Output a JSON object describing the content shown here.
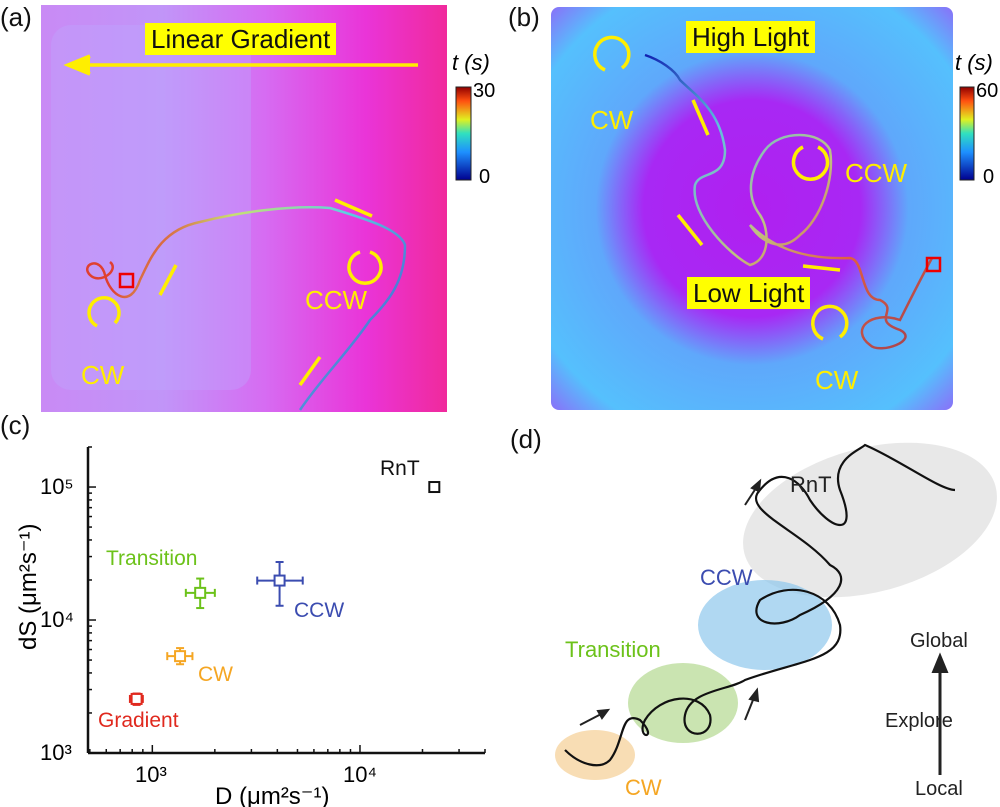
{
  "panel_a": {
    "label": "(a)",
    "title_box": "Linear Gradient",
    "rotation_labels": [
      "CW",
      "CCW"
    ],
    "colorbar": {
      "title": "t (s)",
      "max": "30",
      "min": "0"
    }
  },
  "panel_b": {
    "label": "(b)",
    "top_box": "High Light",
    "bottom_box": "Low Light",
    "rotation_labels": [
      "CW",
      "CCW",
      "CW"
    ],
    "colorbar": {
      "title": "t (s)",
      "max": "60",
      "min": "0"
    }
  },
  "panel_c": {
    "label": "(c)"
  },
  "panel_d": {
    "label": "(d)",
    "regions": [
      "RnT",
      "CCW",
      "Transition",
      "CW"
    ],
    "axis": {
      "top": "Global",
      "middle": "Explore",
      "bottom": "Local"
    }
  },
  "chart_data": {
    "type": "scatter",
    "xscale": "log",
    "yscale": "log",
    "xlabel": "D (μm²s⁻¹)",
    "ylabel": "dS (μm²s⁻¹)",
    "xlim": [
      490,
      40000
    ],
    "ylim": [
      1000,
      200000
    ],
    "xticks": [
      "10³",
      "10⁴"
    ],
    "yticks": [
      "10³",
      "10⁴",
      "10⁵"
    ],
    "points": [
      {
        "name": "Gradient",
        "x": 840,
        "y": 2550,
        "xerr": [
          60,
          60
        ],
        "yerr": [
          250,
          250
        ],
        "color": "#e0291e"
      },
      {
        "name": "CW",
        "x": 1360,
        "y": 5350,
        "xerr": [
          180,
          200
        ],
        "yerr": [
          700,
          800
        ],
        "color": "#f5a623"
      },
      {
        "name": "Transition",
        "x": 1700,
        "y": 16000,
        "xerr": [
          250,
          300
        ],
        "yerr": [
          3700,
          4500
        ],
        "color": "#6cc21a"
      },
      {
        "name": "CCW",
        "x": 4100,
        "y": 19800,
        "xerr": [
          900,
          1200
        ],
        "yerr": [
          7000,
          7500
        ],
        "color": "#3b4cb0"
      },
      {
        "name": "RnT",
        "x": 22800,
        "y": 100000,
        "xerr": [
          800,
          800
        ],
        "yerr": [
          8000,
          8000
        ],
        "color": "#111111"
      }
    ]
  }
}
